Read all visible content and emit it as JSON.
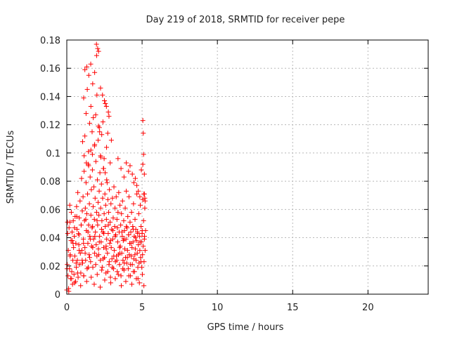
{
  "chart_data": {
    "type": "scatter",
    "title": "Day 219 of 2018, SRMTID for receiver pepe",
    "xlabel": "GPS time / hours",
    "ylabel": "SRMTID / TECUs",
    "xlim": [
      0,
      24
    ],
    "ylim": [
      0,
      0.18
    ],
    "xticks": [
      0,
      5,
      10,
      15,
      20
    ],
    "xtick_labels": [
      "0",
      "5",
      "10",
      "15",
      "20"
    ],
    "yticks": [
      0,
      0.02,
      0.04,
      0.06,
      0.08,
      0.1,
      0.12,
      0.14,
      0.16,
      0.18
    ],
    "ytick_labels": [
      "0",
      "0.02",
      "0.04",
      "0.06",
      "0.08",
      "0.1",
      "0.12",
      "0.14",
      "0.16",
      "0.18"
    ],
    "grid": true,
    "marker": "+",
    "color": "#ff0000",
    "series": [
      {
        "name": "SRMTID",
        "x": [
          0.0,
          0.03,
          0.05,
          0.08,
          0.1,
          0.13,
          0.15,
          0.18,
          0.2,
          0.23,
          0.25,
          0.28,
          0.3,
          0.33,
          0.35,
          0.38,
          0.4,
          0.43,
          0.45,
          0.48,
          0.5,
          0.53,
          0.55,
          0.58,
          0.6,
          0.63,
          0.65,
          0.68,
          0.7,
          0.73,
          0.75,
          0.78,
          0.8,
          0.83,
          0.85,
          0.88,
          0.9,
          0.93,
          0.95,
          0.98,
          1.0,
          1.03,
          1.05,
          1.08,
          1.1,
          1.13,
          1.15,
          1.18,
          1.2,
          1.23,
          1.25,
          1.28,
          1.3,
          1.33,
          1.35,
          1.38,
          1.4,
          1.43,
          1.45,
          1.48,
          1.5,
          1.53,
          1.55,
          1.58,
          1.6,
          1.63,
          1.65,
          1.68,
          1.7,
          1.73,
          1.75,
          1.78,
          1.8,
          1.83,
          1.85,
          1.88,
          1.9,
          1.93,
          1.95,
          1.98,
          2.0,
          2.03,
          2.05,
          2.08,
          2.1,
          2.13,
          2.15,
          2.18,
          2.2,
          2.23,
          2.25,
          2.28,
          2.3,
          2.33,
          2.35,
          2.38,
          2.4,
          2.43,
          2.45,
          2.48,
          2.5,
          2.53,
          2.55,
          2.58,
          2.6,
          2.63,
          2.65,
          2.68,
          2.7,
          2.73,
          2.75,
          2.78,
          2.8,
          2.83,
          2.85,
          2.88,
          2.9,
          2.93,
          2.95,
          2.98,
          3.0,
          3.03,
          3.05,
          3.08,
          3.1,
          3.13,
          3.15,
          3.18,
          3.2,
          3.23,
          3.25,
          3.28,
          3.3,
          3.33,
          3.35,
          3.38,
          3.4,
          3.43,
          3.45,
          3.48,
          3.5,
          3.53,
          3.55,
          3.58,
          3.6,
          3.63,
          3.65,
          3.68,
          3.7,
          3.73,
          3.75,
          3.78,
          3.8,
          3.83,
          3.85,
          3.88,
          3.9,
          3.93,
          3.95,
          3.98,
          4.0,
          4.03,
          4.05,
          4.08,
          4.1,
          4.13,
          4.15,
          4.18,
          4.2,
          4.23,
          4.25,
          4.28,
          4.3,
          4.33,
          4.35,
          4.38,
          4.4,
          4.43,
          4.45,
          4.48,
          4.5,
          4.53,
          4.55,
          4.58,
          4.6,
          4.63,
          4.65,
          4.68,
          4.7,
          4.73,
          4.75,
          4.78,
          4.8,
          4.83,
          4.85,
          4.88,
          4.9,
          4.93,
          4.95,
          4.98,
          5.0,
          5.03,
          5.05,
          5.08,
          5.1,
          5.13,
          5.15,
          5.18,
          5.2,
          5.23,
          0.02,
          0.12,
          0.22,
          0.32,
          0.42,
          0.52,
          0.62,
          0.72,
          0.82,
          0.92,
          1.02,
          1.12,
          1.22,
          1.32,
          1.42,
          1.52,
          1.62,
          1.72,
          1.82,
          1.92,
          2.02,
          2.12,
          2.22,
          2.32,
          2.42,
          2.52,
          2.62,
          2.72,
          2.82,
          2.92,
          3.02,
          3.12,
          3.22,
          3.32,
          3.42,
          3.52,
          3.62,
          3.72,
          3.82,
          3.92,
          4.02,
          4.12,
          4.22,
          4.32,
          4.42,
          4.52,
          4.62,
          4.72,
          4.82,
          4.92,
          5.02,
          5.12,
          0.06,
          0.21,
          0.36,
          0.51,
          0.66,
          0.81,
          0.96,
          1.11,
          1.26,
          1.41,
          1.56,
          1.71,
          1.86,
          2.01,
          2.16,
          2.31,
          2.46,
          2.61,
          2.76,
          2.91,
          3.06,
          3.21,
          3.36,
          3.51,
          3.66,
          3.81,
          3.96,
          4.11,
          4.26,
          4.41,
          4.56,
          4.71,
          4.86,
          5.01,
          5.16,
          1.05,
          1.12,
          1.2,
          1.28,
          1.36,
          1.44,
          1.52,
          1.6,
          1.68,
          1.76,
          1.84,
          1.92,
          2.0,
          2.08,
          2.16,
          2.24,
          2.32,
          2.4,
          2.48,
          2.56,
          2.64,
          2.72,
          2.8,
          2.88,
          2.96,
          1.2,
          1.33,
          1.46,
          1.59,
          1.72,
          1.85,
          1.98,
          2.11,
          2.24,
          2.37,
          2.5,
          2.63,
          2.76,
          1.15,
          1.3,
          1.45,
          1.6,
          1.7,
          1.85,
          1.97,
          2.05,
          2.1,
          2.18,
          2.26,
          2.45,
          2.55,
          2.65,
          3.4,
          3.6,
          3.8,
          3.95,
          4.1,
          4.2,
          4.35,
          4.45,
          4.55,
          4.65,
          4.75,
          4.85,
          4.95,
          5.05,
          5.15,
          5.05,
          5.08,
          5.1,
          5.12,
          5.15,
          5.18,
          5.2
        ],
        "y": [
          0.003,
          0.021,
          0.051,
          0.013,
          0.031,
          0.002,
          0.047,
          0.018,
          0.063,
          0.028,
          0.011,
          0.038,
          0.058,
          0.016,
          0.044,
          0.007,
          0.024,
          0.052,
          0.033,
          0.014,
          0.041,
          0.027,
          0.055,
          0.009,
          0.036,
          0.019,
          0.062,
          0.046,
          0.024,
          0.072,
          0.012,
          0.043,
          0.035,
          0.054,
          0.021,
          0.066,
          0.029,
          0.015,
          0.049,
          0.082,
          0.031,
          0.059,
          0.022,
          0.069,
          0.039,
          0.013,
          0.087,
          0.052,
          0.033,
          0.061,
          0.024,
          0.079,
          0.045,
          0.057,
          0.018,
          0.071,
          0.036,
          0.092,
          0.049,
          0.028,
          0.064,
          0.041,
          0.083,
          0.023,
          0.056,
          0.074,
          0.034,
          0.047,
          0.088,
          0.019,
          0.062,
          0.039,
          0.076,
          0.053,
          0.029,
          0.068,
          0.044,
          0.094,
          0.035,
          0.058,
          0.027,
          0.081,
          0.049,
          0.065,
          0.032,
          0.056,
          0.073,
          0.041,
          0.086,
          0.024,
          0.061,
          0.037,
          0.078,
          0.052,
          0.019,
          0.068,
          0.044,
          0.089,
          0.033,
          0.057,
          0.026,
          0.071,
          0.048,
          0.063,
          0.015,
          0.053,
          0.039,
          0.079,
          0.029,
          0.067,
          0.043,
          0.058,
          0.021,
          0.074,
          0.036,
          0.051,
          0.012,
          0.064,
          0.033,
          0.046,
          0.025,
          0.068,
          0.039,
          0.054,
          0.018,
          0.076,
          0.031,
          0.048,
          0.061,
          0.023,
          0.042,
          0.069,
          0.027,
          0.053,
          0.016,
          0.037,
          0.058,
          0.028,
          0.072,
          0.044,
          0.021,
          0.063,
          0.034,
          0.049,
          0.013,
          0.057,
          0.029,
          0.041,
          0.066,
          0.024,
          0.038,
          0.052,
          0.017,
          0.045,
          0.032,
          0.061,
          0.026,
          0.039,
          0.073,
          0.022,
          0.047,
          0.031,
          0.055,
          0.018,
          0.042,
          0.069,
          0.028,
          0.036,
          0.051,
          0.013,
          0.044,
          0.027,
          0.058,
          0.033,
          0.021,
          0.048,
          0.037,
          0.064,
          0.025,
          0.041,
          0.016,
          0.053,
          0.032,
          0.046,
          0.024,
          0.038,
          0.071,
          0.029,
          0.044,
          0.011,
          0.035,
          0.057,
          0.022,
          0.041,
          0.031,
          0.063,
          0.026,
          0.048,
          0.037,
          0.019,
          0.043,
          0.028,
          0.067,
          0.034,
          0.052,
          0.023,
          0.039,
          0.061,
          0.031,
          0.045,
          0.018,
          0.004,
          0.027,
          0.011,
          0.036,
          0.008,
          0.022,
          0.015,
          0.031,
          0.006,
          0.024,
          0.013,
          0.029,
          0.009,
          0.019,
          0.026,
          0.012,
          0.033,
          0.007,
          0.021,
          0.014,
          0.028,
          0.005,
          0.017,
          0.025,
          0.01,
          0.032,
          0.016,
          0.023,
          0.008,
          0.019,
          0.027,
          0.011,
          0.024,
          0.014,
          0.029,
          0.006,
          0.018,
          0.022,
          0.009,
          0.026,
          0.013,
          0.021,
          0.007,
          0.016,
          0.028,
          0.011,
          0.019,
          0.008,
          0.023,
          0.014,
          0.006,
          0.043,
          0.051,
          0.038,
          0.047,
          0.055,
          0.042,
          0.049,
          0.036,
          0.053,
          0.044,
          0.039,
          0.048,
          0.041,
          0.052,
          0.037,
          0.046,
          0.043,
          0.034,
          0.049,
          0.038,
          0.045,
          0.041,
          0.047,
          0.033,
          0.044,
          0.039,
          0.048,
          0.042,
          0.036,
          0.046,
          0.04,
          0.043,
          0.037,
          0.045,
          0.041,
          0.108,
          0.139,
          0.112,
          0.128,
          0.145,
          0.101,
          0.121,
          0.133,
          0.115,
          0.125,
          0.105,
          0.127,
          0.141,
          0.109,
          0.118,
          0.098,
          0.113,
          0.122,
          0.096,
          0.135,
          0.104,
          0.114,
          0.126,
          0.093,
          0.109,
          0.159,
          0.161,
          0.155,
          0.163,
          0.149,
          0.157,
          0.169,
          0.172,
          0.146,
          0.141,
          0.137,
          0.133,
          0.129,
          0.098,
          0.093,
          0.091,
          0.102,
          0.099,
          0.106,
          0.177,
          0.174,
          0.119,
          0.115,
          0.097,
          0.089,
          0.086,
          0.081,
          0.096,
          0.089,
          0.083,
          0.093,
          0.087,
          0.091,
          0.085,
          0.079,
          0.082,
          0.077,
          0.073,
          0.069,
          0.088,
          0.092,
          0.071,
          0.123,
          0.114,
          0.099,
          0.071,
          0.085,
          0.068,
          0.066
        ]
      }
    ]
  }
}
